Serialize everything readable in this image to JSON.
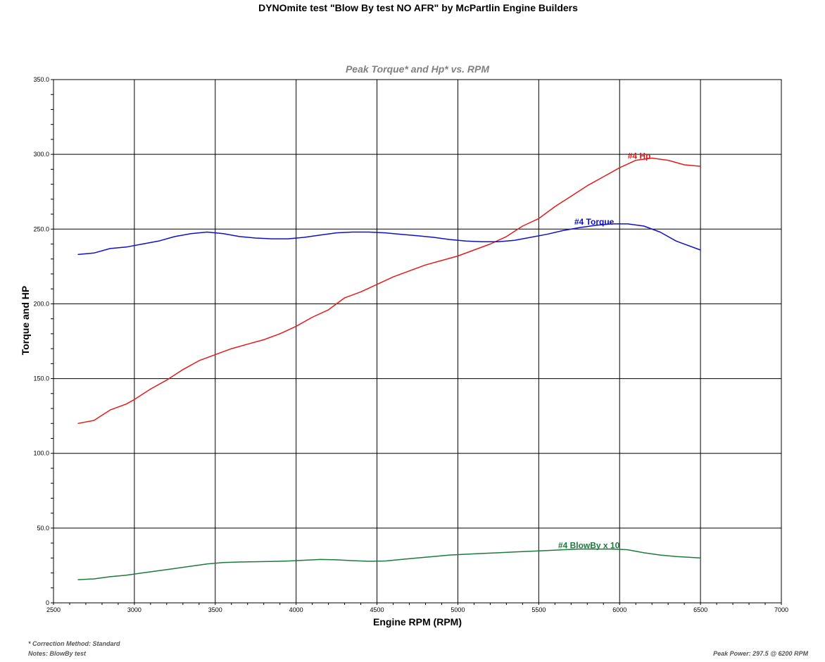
{
  "title": "DYNOmite test \"Blow By test NO AFR\" by McPartlin Engine Builders",
  "notes": {
    "correction": "* Correction Method: Standard",
    "notes": "Notes: BlowBy  test",
    "peak": "Peak Power: 297.5  @ 6200 RPM"
  },
  "colors": {
    "hp": "#e31b1b",
    "torque": "#1010cc",
    "blowby": "#1e7a3c"
  },
  "chart_data": {
    "type": "line",
    "title": "Peak Torque* and Hp* vs. RPM",
    "xlabel": "Engine RPM (RPM)",
    "ylabel": "Torque and HP",
    "xlim": [
      2500,
      7000
    ],
    "ylim": [
      0,
      350
    ],
    "xticks": [
      "2500",
      "3000",
      "3500",
      "4000",
      "4500",
      "5000",
      "5500",
      "6000",
      "6500",
      "7000"
    ],
    "yticks": [
      "0",
      "50.0",
      "100.0",
      "150.0",
      "200.0",
      "250.0",
      "300.0",
      "350.0"
    ],
    "grid": true,
    "series": [
      {
        "name": "#4 Hp",
        "x": [
          2650,
          2750,
          2850,
          2950,
          3000,
          3100,
          3200,
          3300,
          3400,
          3500,
          3600,
          3700,
          3800,
          3900,
          4000,
          4100,
          4200,
          4300,
          4350,
          4400,
          4500,
          4600,
          4700,
          4800,
          4900,
          5000,
          5100,
          5200,
          5300,
          5400,
          5500,
          5600,
          5700,
          5800,
          5900,
          6000,
          6100,
          6200,
          6300,
          6400,
          6500
        ],
        "values": [
          120,
          122,
          129,
          133,
          136,
          143,
          149,
          156,
          162,
          166,
          170,
          173,
          176,
          180,
          185,
          191,
          196,
          204,
          206,
          208,
          213,
          218,
          222,
          226,
          229,
          232,
          236,
          240,
          245,
          252,
          257,
          265,
          272,
          279,
          285,
          291,
          296,
          297.5,
          296,
          293,
          292
        ]
      },
      {
        "name": "#4 Torque",
        "x": [
          2650,
          2750,
          2850,
          2950,
          3050,
          3150,
          3250,
          3350,
          3450,
          3550,
          3650,
          3750,
          3850,
          3950,
          4050,
          4150,
          4250,
          4350,
          4450,
          4550,
          4650,
          4750,
          4850,
          4950,
          5050,
          5150,
          5250,
          5350,
          5450,
          5550,
          5650,
          5750,
          5850,
          5950,
          6050,
          6150,
          6250,
          6350,
          6500
        ],
        "values": [
          233,
          234,
          237,
          238,
          240,
          242,
          245,
          247,
          248,
          247,
          245,
          244,
          243.5,
          243.5,
          244.5,
          246,
          247.5,
          248,
          248,
          247.5,
          246.5,
          245.5,
          244.5,
          243,
          242,
          241.5,
          241.5,
          242.5,
          244.5,
          246.5,
          249,
          251,
          252.5,
          253.5,
          253.5,
          252,
          248,
          242,
          236
        ]
      },
      {
        "name": "#4 BlowBy x 10",
        "x": [
          2650,
          2750,
          2850,
          2950,
          3050,
          3150,
          3250,
          3350,
          3450,
          3550,
          3650,
          3750,
          3850,
          3950,
          4050,
          4150,
          4250,
          4350,
          4450,
          4550,
          4650,
          4750,
          4850,
          4950,
          5050,
          5150,
          5250,
          5350,
          5450,
          5550,
          5650,
          5750,
          5850,
          5950,
          6050,
          6150,
          6250,
          6350,
          6500
        ],
        "values": [
          15.5,
          16,
          17.5,
          18.5,
          20,
          21.5,
          23,
          24.5,
          26,
          27,
          27.3,
          27.5,
          27.7,
          28,
          28.5,
          29,
          28.8,
          28.2,
          27.8,
          28,
          29,
          30,
          31,
          32,
          32.5,
          33,
          33.5,
          34,
          34.5,
          35,
          35.5,
          36,
          36,
          36,
          35.5,
          33.5,
          32,
          31,
          30
        ]
      }
    ],
    "annotations": [
      {
        "series": "#4 Hp",
        "label": "#4 Hp",
        "x": 6050,
        "y": 297
      },
      {
        "series": "#4 Torque",
        "label": "#4 Torque",
        "x": 5720,
        "y": 253
      },
      {
        "series": "#4 BlowBy x 10",
        "label": "#4 BlowBy x 10",
        "x": 5620,
        "y": 36.5
      }
    ]
  }
}
